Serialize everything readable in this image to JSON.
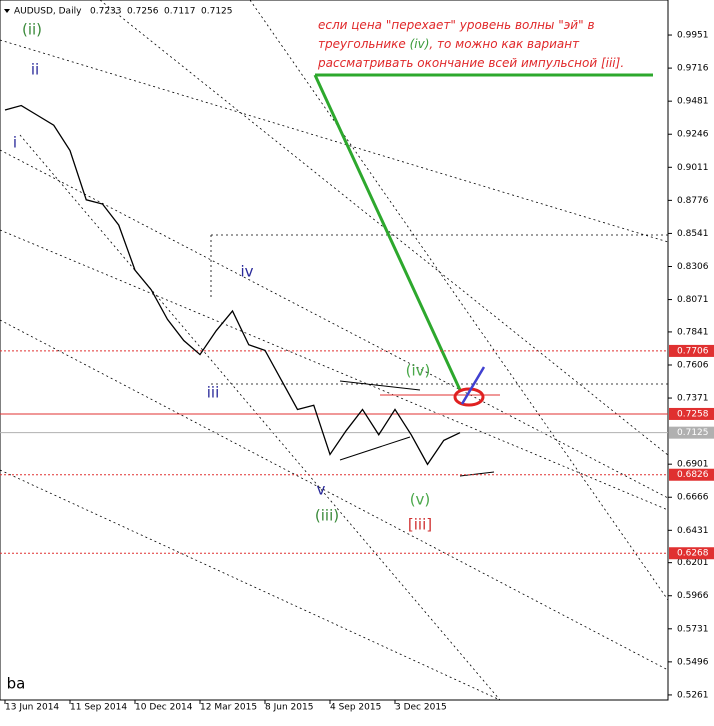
{
  "chart_data": {
    "type": "line",
    "symbol": "AUDUSD, Daily",
    "ohlc": [
      0.7233,
      0.7256,
      0.7117,
      0.7125
    ],
    "categories": [
      "13 Jun 2014",
      null,
      null,
      null,
      "11 Sep 2014",
      null,
      null,
      null,
      "10 Dec 2014",
      null,
      null,
      null,
      "12 Mar 2015",
      null,
      null,
      null,
      "8 Jun 2015",
      null,
      null,
      null,
      "4 Sep 2015",
      null,
      null,
      null,
      "3 Dec 2015",
      null,
      null,
      null,
      null
    ],
    "values": [
      0.9418,
      0.945,
      0.938,
      0.931,
      0.913,
      0.878,
      0.875,
      0.86,
      0.828,
      0.814,
      0.793,
      0.778,
      0.768,
      0.785,
      0.799,
      0.775,
      0.771,
      0.75,
      0.729,
      0.732,
      0.697,
      0.714,
      0.729,
      0.711,
      0.729,
      0.711,
      0.69,
      0.707,
      0.7125
    ],
    "color": "#000000",
    "ylim": [
      0.5225,
      1.02
    ],
    "yticks": [
      0.9951,
      0.9716,
      0.9481,
      0.9246,
      0.9011,
      0.8776,
      0.8541,
      0.8306,
      0.8071,
      0.7841,
      0.7606,
      0.7371,
      0.6901,
      0.6666,
      0.6431,
      0.6201,
      0.5966,
      0.5731,
      0.5496,
      0.5261
    ],
    "levels": [
      {
        "value": 0.7706,
        "color": "#e03030",
        "style": "dotted"
      },
      {
        "value": 0.7258,
        "color": "#e03030",
        "style": "solid"
      },
      {
        "value": 0.7125,
        "color": "#b0b0b0",
        "style": "solid"
      },
      {
        "value": 0.6826,
        "color": "#e03030",
        "style": "dotted"
      },
      {
        "value": 0.6268,
        "color": "#e03030",
        "style": "dotted"
      }
    ],
    "annotations": [
      {
        "text": "(ii)",
        "color": "#3a8a3a"
      },
      {
        "text": "ii",
        "color": "#2a2a9a"
      },
      {
        "text": "i",
        "color": "#2a2a9a"
      },
      {
        "text": "iv",
        "color": "#2a2a9a"
      },
      {
        "text": "iii",
        "color": "#2a2a9a"
      },
      {
        "text": "v",
        "color": "#2a2a9a"
      },
      {
        "text": "(iii)",
        "color": "#3a8a3a"
      },
      {
        "text": "(iv)",
        "color": "#4aa84a"
      },
      {
        "text": "(v)",
        "color": "#4aa84a"
      },
      {
        "text": "[iii]",
        "color": "#d03030"
      },
      {
        "text": "ba",
        "color": "#000000"
      }
    ],
    "note": [
      [
        {
          "text": "если цена \"перехает\" уровень волны \"эй\" в",
          "color": "#e0282a"
        }
      ],
      [
        {
          "text": "треугольнике ",
          "color": "#e0282a"
        },
        {
          "text": "(iv)",
          "color": "#3a9a3a"
        },
        {
          "text": ", то можно как вариант",
          "color": "#e0282a"
        }
      ],
      [
        {
          "text": "рассматривать окончание всей импульсной [iii].",
          "color": "#e0282a"
        }
      ]
    ]
  }
}
